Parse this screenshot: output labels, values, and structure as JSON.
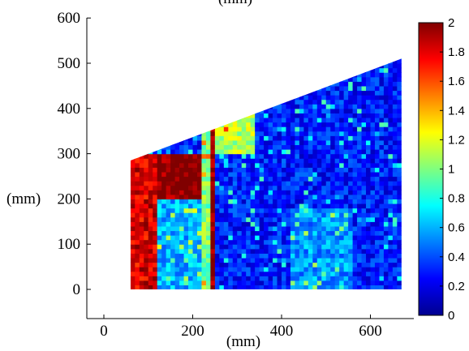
{
  "chart_data": [
    {
      "type": "heatmap",
      "title": "(mm)",
      "xlabel": "(mm)",
      "ylabel": "(mm)",
      "xlim": [
        -50,
        720
      ],
      "ylim": [
        -40,
        600
      ],
      "x_ticks": [
        0,
        200,
        400,
        600
      ],
      "y_ticks": [
        0,
        100,
        200,
        300,
        400,
        500,
        600
      ],
      "grid": false,
      "region_outline": [
        [
          60,
          0
        ],
        [
          670,
          0
        ],
        [
          670,
          510
        ],
        [
          60,
          285
        ]
      ],
      "value_range": [
        0,
        2
      ],
      "background_value": 0.3,
      "zones": [
        {
          "x_range": [
            60,
            215
          ],
          "y_range": [
            200,
            295
          ],
          "value": 2.0
        },
        {
          "x_range": [
            60,
            115
          ],
          "y_range": [
            0,
            300
          ],
          "value": 1.8
        },
        {
          "x_range": [
            235,
            250
          ],
          "y_range": [
            0,
            360
          ],
          "value": 2.0
        },
        {
          "x_range": [
            220,
            235
          ],
          "y_range": [
            0,
            360
          ],
          "value": 1.0
        },
        {
          "x_range": [
            255,
            340
          ],
          "y_range": [
            300,
            400
          ],
          "value": 1.1
        },
        {
          "x_range": [
            120,
            220
          ],
          "y_range": [
            0,
            200
          ],
          "value": 0.6
        },
        {
          "x_range": [
            420,
            560
          ],
          "y_range": [
            0,
            180
          ],
          "value": 0.55
        }
      ]
    },
    {
      "type": "colorbar",
      "min": 0,
      "max": 2,
      "ticks": [
        0,
        0.2,
        0.4,
        0.6,
        0.8,
        1,
        1.2,
        1.4,
        1.6,
        1.8,
        2
      ],
      "colormap": "jet"
    }
  ],
  "colors": {
    "low": "#00008f",
    "mid": "#7fff7f",
    "high": "#800000"
  }
}
